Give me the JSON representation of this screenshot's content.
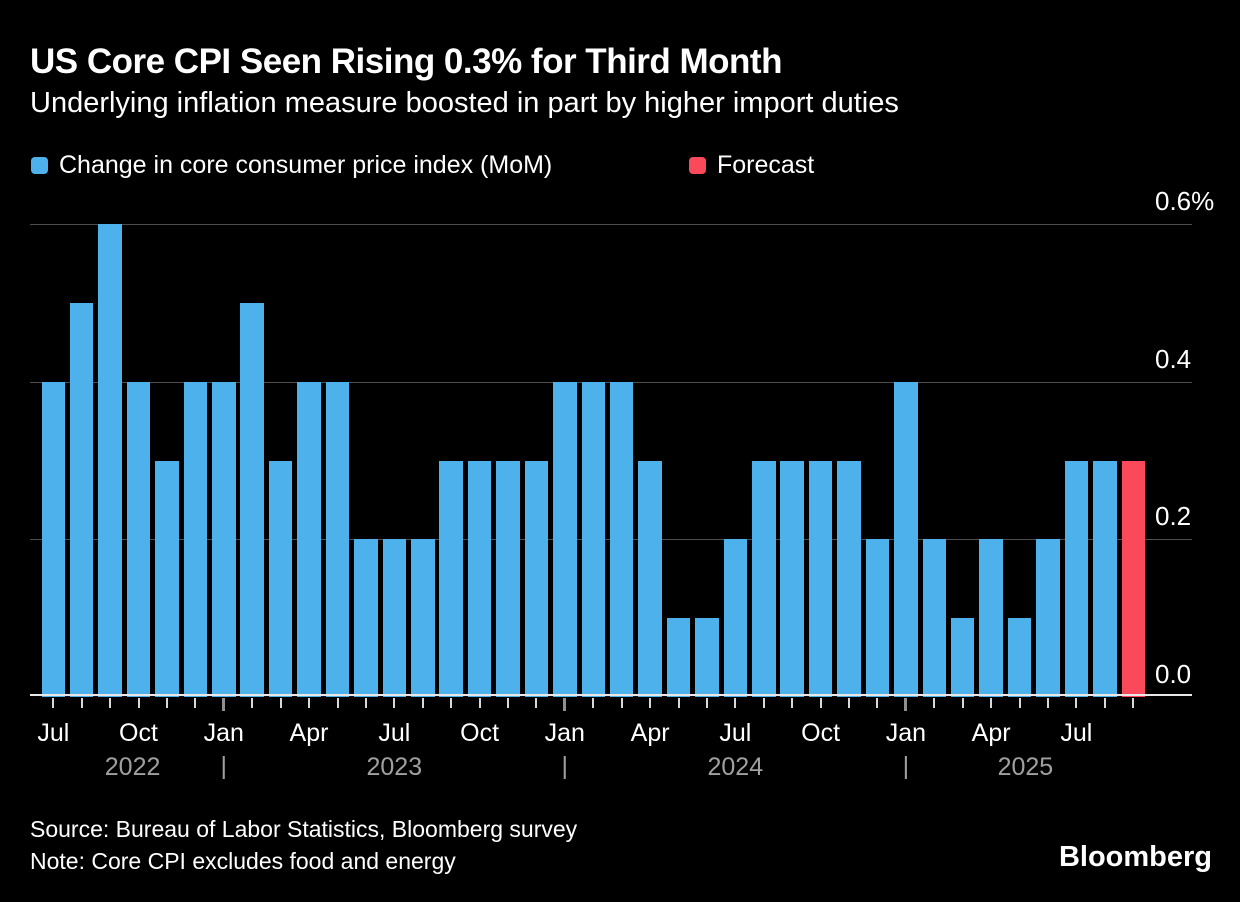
{
  "header": {
    "title": "US Core CPI Seen Rising 0.3% for Third Month",
    "subtitle": "Underlying inflation measure boosted in part by higher import duties"
  },
  "legend": {
    "series_label": "Change in core consumer price index (MoM)",
    "forecast_label": "Forecast"
  },
  "chart_data": {
    "type": "bar",
    "title": "US Core CPI Seen Rising 0.3% for Third Month",
    "subtitle": "Underlying inflation measure boosted in part by higher import duties",
    "unit": "% month-over-month",
    "x": [
      "Jul 2022",
      "Aug 2022",
      "Sep 2022",
      "Oct 2022",
      "Nov 2022",
      "Dec 2022",
      "Jan 2023",
      "Feb 2023",
      "Mar 2023",
      "Apr 2023",
      "May 2023",
      "Jun 2023",
      "Jul 2023",
      "Aug 2023",
      "Sep 2023",
      "Oct 2023",
      "Nov 2023",
      "Dec 2023",
      "Jan 2024",
      "Feb 2024",
      "Mar 2024",
      "Apr 2024",
      "May 2024",
      "Jun 2024",
      "Jul 2024",
      "Aug 2024",
      "Sep 2024",
      "Oct 2024",
      "Nov 2024",
      "Dec 2024",
      "Jan 2025",
      "Feb 2025",
      "Mar 2025",
      "Apr 2025",
      "May 2025",
      "Jun 2025",
      "Jul 2025",
      "Aug 2025",
      "Sep 2025"
    ],
    "values": [
      0.4,
      0.5,
      0.6,
      0.4,
      0.3,
      0.4,
      0.4,
      0.5,
      0.3,
      0.4,
      0.4,
      0.2,
      0.2,
      0.2,
      0.3,
      0.3,
      0.3,
      0.3,
      0.4,
      0.4,
      0.4,
      0.3,
      0.1,
      0.1,
      0.2,
      0.3,
      0.3,
      0.3,
      0.3,
      0.2,
      0.4,
      0.2,
      0.1,
      0.2,
      0.1,
      0.2,
      0.3,
      0.3,
      0.3
    ],
    "forecast_index": 38,
    "series": [
      {
        "name": "Change in core consumer price index (MoM)",
        "color": "#4DB2EC"
      },
      {
        "name": "Forecast",
        "color": "#F9495A"
      }
    ],
    "ylim": [
      0,
      0.6
    ],
    "ytick_labels": [
      "0.6%",
      "0.4",
      "0.2",
      "0.0"
    ],
    "ytick_values": [
      0.6,
      0.4,
      0.2,
      0.0
    ],
    "x_month_label_every": 3,
    "year_labels": [
      "2022",
      "2023",
      "2024",
      "2025"
    ],
    "grid": true,
    "legend_position": "top-left",
    "colors": {
      "background": "#000000",
      "bar": "#4DB2EC",
      "forecast": "#F9495A",
      "gridline": "#4D4D4D",
      "baseline": "#E8E8E8",
      "tick": "#D8D8D8",
      "year_tick": "#909090",
      "month_label": "#FFFFFF",
      "year_label": "#A0A0A0",
      "axis_label": "#FFFFFF"
    }
  },
  "footer": {
    "source": "Source: Bureau of Labor Statistics, Bloomberg survey",
    "note": "Note: Core CPI excludes food and energy",
    "brand": "Bloomberg"
  }
}
